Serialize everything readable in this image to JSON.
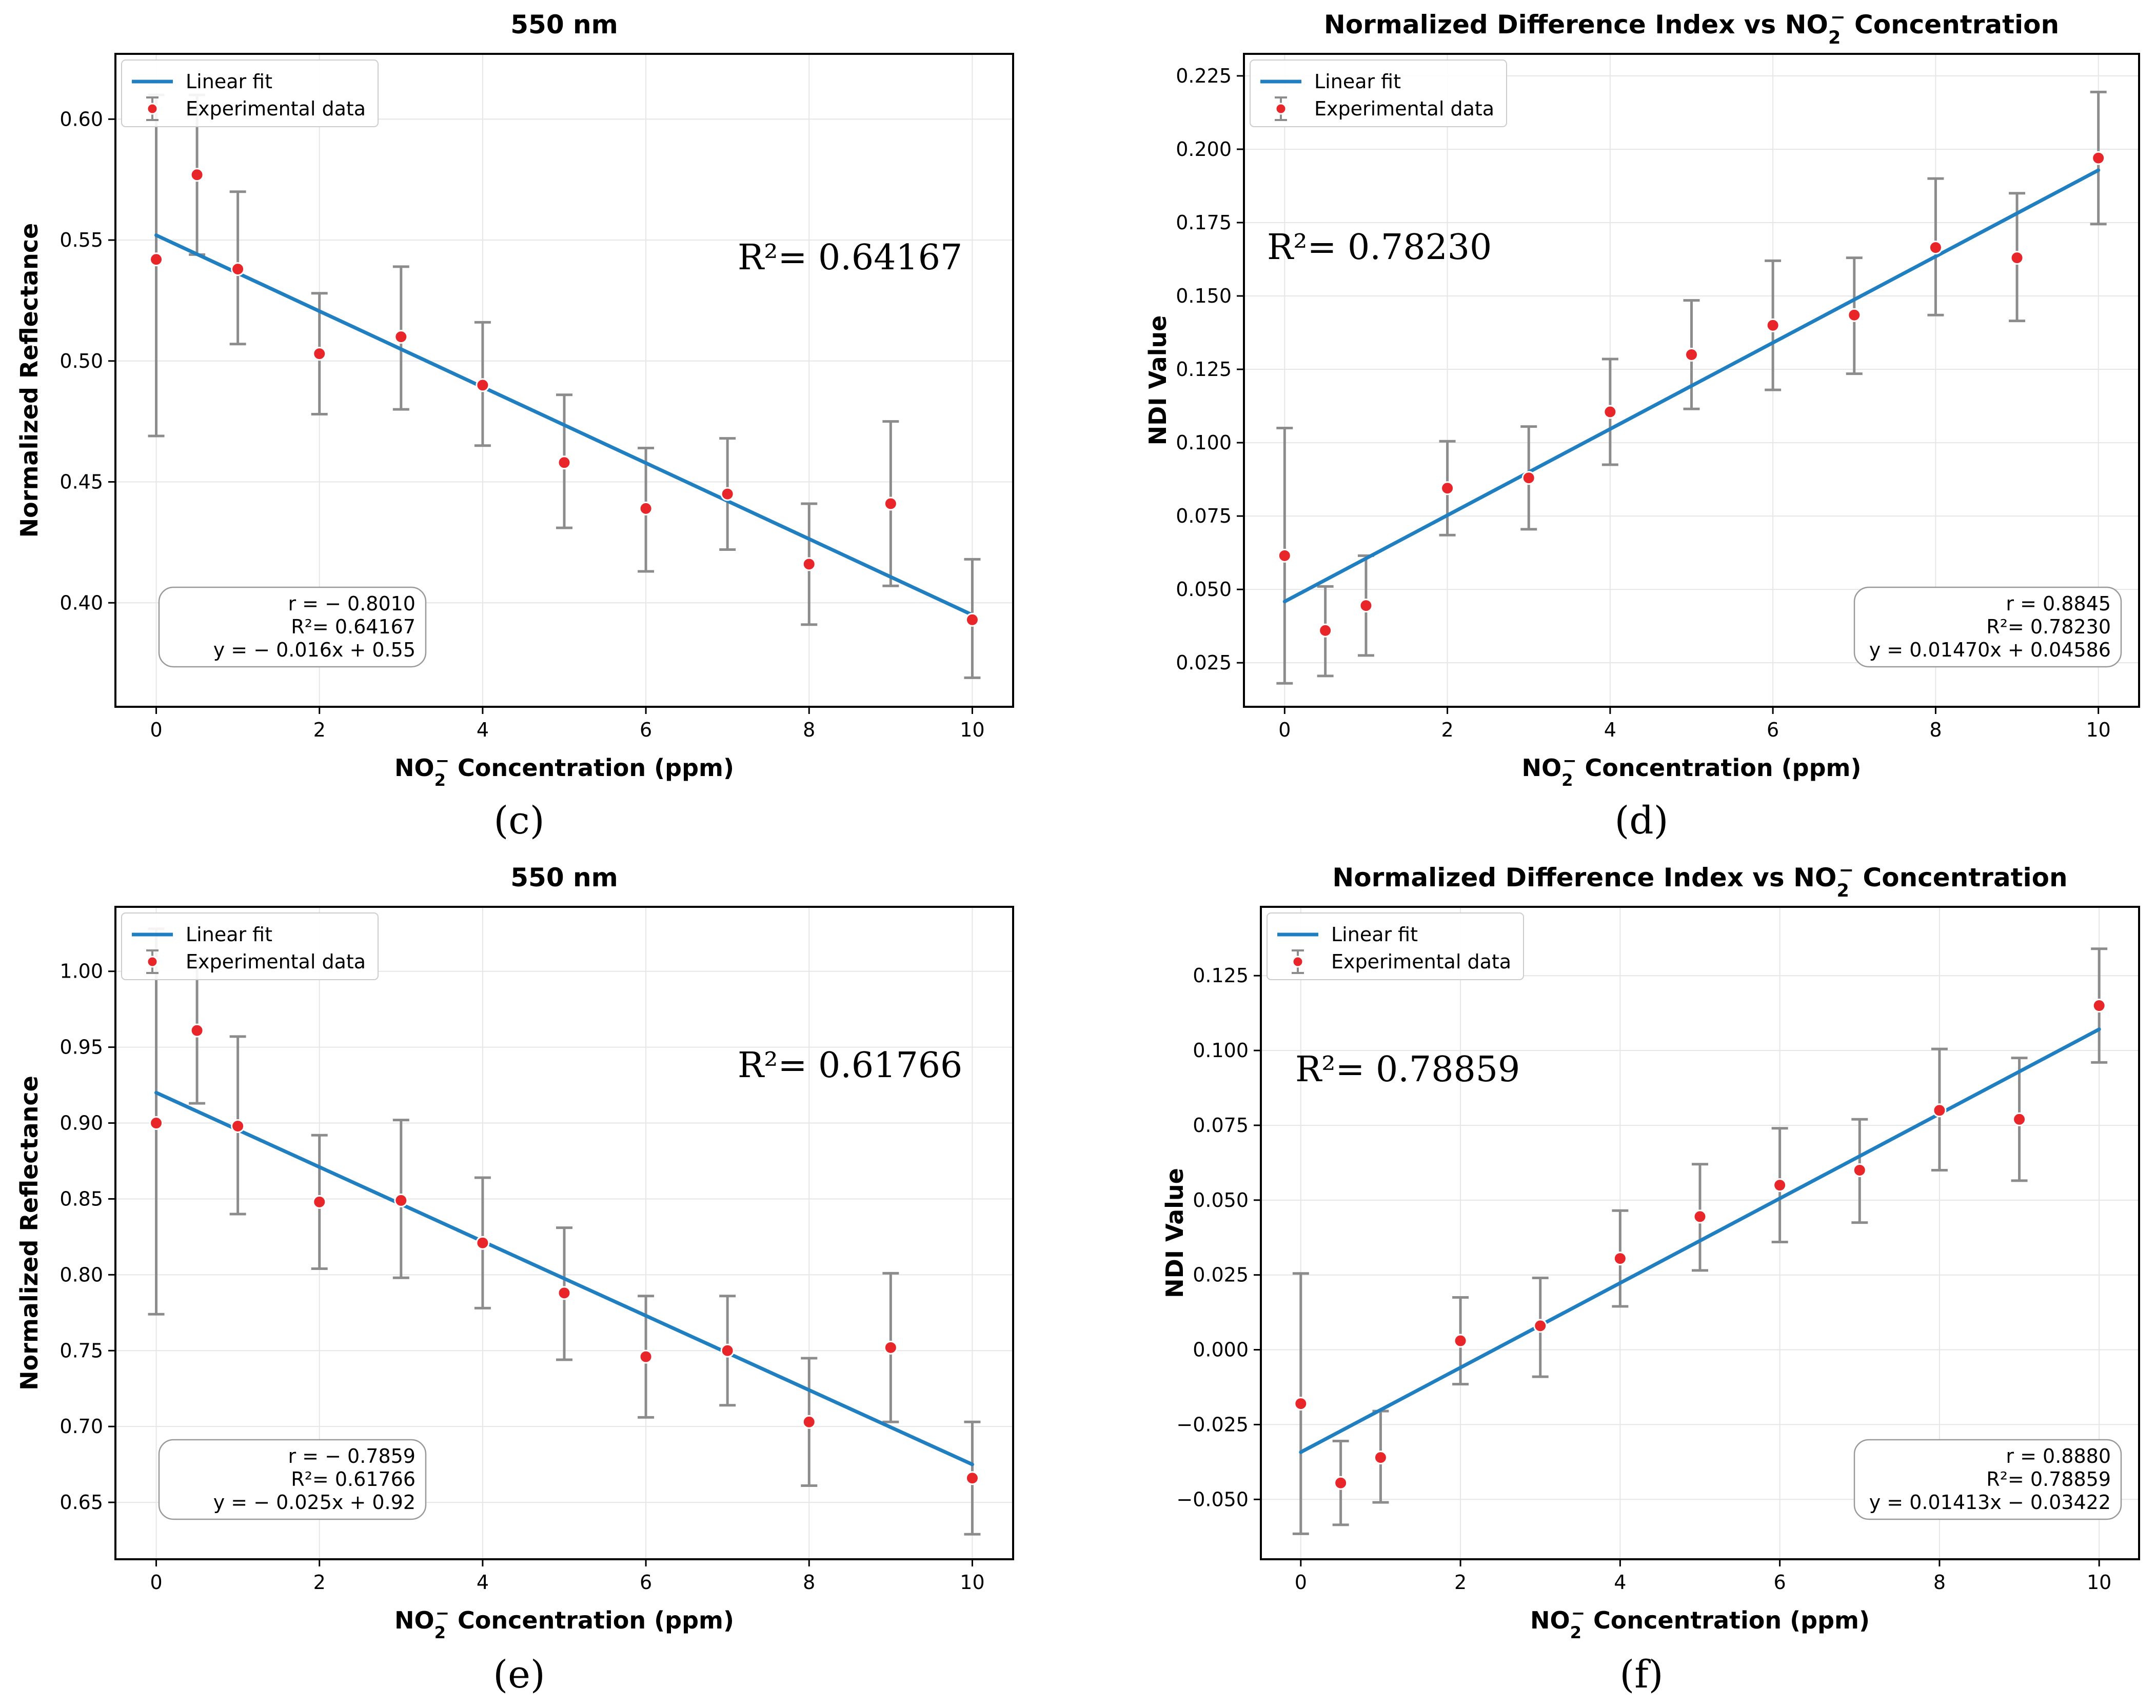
{
  "chart_data": [
    {
      "type": "scatter",
      "panel_label": "(c)",
      "title": "550 nm",
      "xlabel": "NO",
      "xlabel_suffix": " Concentration (ppm)",
      "ylabel": "Normalized Reflectance",
      "xlim": [
        -0.5,
        10.5
      ],
      "ylim": [
        0.357,
        0.627
      ],
      "xticks": [
        0,
        2,
        4,
        6,
        8,
        10
      ],
      "xtick_labels": [
        "0",
        "2",
        "4",
        "6",
        "8",
        "10"
      ],
      "yticks": [
        0.4,
        0.45,
        0.5,
        0.55,
        0.6
      ],
      "ytick_labels": [
        "0.40",
        "0.45",
        "0.50",
        "0.55",
        "0.60"
      ],
      "legend": [
        "Linear fit",
        "Experimental data"
      ],
      "legend_position": "top-left",
      "x": [
        0,
        0.5,
        1,
        2,
        3,
        4,
        5,
        6,
        7,
        8,
        9,
        10
      ],
      "y": [
        0.542,
        0.577,
        0.538,
        0.503,
        0.51,
        0.49,
        0.458,
        0.439,
        0.445,
        0.416,
        0.441,
        0.393
      ],
      "yerr_low": [
        0.469,
        0.544,
        0.507,
        0.478,
        0.48,
        0.465,
        0.431,
        0.413,
        0.422,
        0.391,
        0.407,
        0.369
      ],
      "yerr_high": [
        0.61,
        0.61,
        0.57,
        0.528,
        0.539,
        0.516,
        0.486,
        0.464,
        0.468,
        0.441,
        0.475,
        0.418
      ],
      "fit": {
        "slope": -0.0157,
        "intercept": 0.552
      },
      "r2_annotation": "0.64167",
      "stats": [
        "r = − 0.8010",
        "R²= 0.64167",
        "y = − 0.016x + 0.55"
      ],
      "stats_position": "bottom-left",
      "r2_position": "upper-right"
    },
    {
      "type": "scatter",
      "panel_label": "(d)",
      "title": "Normalized Difference Index vs NO",
      "title_suffix": " Concentration",
      "xlabel": "NO",
      "xlabel_suffix": " Concentration (ppm)",
      "ylabel": "NDI Value",
      "xlim": [
        -0.5,
        10.5
      ],
      "ylim": [
        0.01,
        0.2325
      ],
      "xticks": [
        0,
        2,
        4,
        6,
        8,
        10
      ],
      "xtick_labels": [
        "0",
        "2",
        "4",
        "6",
        "8",
        "10"
      ],
      "yticks": [
        0.025,
        0.05,
        0.075,
        0.1,
        0.125,
        0.15,
        0.175,
        0.2,
        0.225
      ],
      "ytick_labels": [
        "0.025",
        "0.050",
        "0.075",
        "0.100",
        "0.125",
        "0.150",
        "0.175",
        "0.200",
        "0.225"
      ],
      "legend": [
        "Linear fit",
        "Experimental data"
      ],
      "legend_position": "top-left",
      "x": [
        0,
        0.5,
        1,
        2,
        3,
        4,
        5,
        6,
        7,
        8,
        9,
        10
      ],
      "y": [
        0.0615,
        0.036,
        0.0445,
        0.0845,
        0.088,
        0.1105,
        0.13,
        0.14,
        0.1435,
        0.1665,
        0.163,
        0.197
      ],
      "yerr_low": [
        0.018,
        0.0205,
        0.0275,
        0.0685,
        0.0705,
        0.0925,
        0.1115,
        0.118,
        0.1235,
        0.1435,
        0.1415,
        0.1745
      ],
      "yerr_high": [
        0.105,
        0.051,
        0.0615,
        0.1005,
        0.1055,
        0.1285,
        0.1485,
        0.162,
        0.163,
        0.19,
        0.185,
        0.2195
      ],
      "fit": {
        "slope": 0.0147,
        "intercept": 0.04586
      },
      "r2_annotation": "0.78230",
      "stats": [
        "r = 0.8845",
        "R²= 0.78230",
        "y = 0.01470x + 0.04586"
      ],
      "stats_position": "bottom-right",
      "r2_position": "upper-left"
    },
    {
      "type": "scatter",
      "panel_label": "(e)",
      "title": "550 nm",
      "xlabel": "NO",
      "xlabel_suffix": " Concentration (ppm)",
      "ylabel": "Normalized Reflectance",
      "xlim": [
        -0.5,
        10.5
      ],
      "ylim": [
        0.6125,
        1.0425
      ],
      "xticks": [
        0,
        2,
        4,
        6,
        8,
        10
      ],
      "xtick_labels": [
        "0",
        "2",
        "4",
        "6",
        "8",
        "10"
      ],
      "yticks": [
        0.65,
        0.7,
        0.75,
        0.8,
        0.85,
        0.9,
        0.95,
        1.0
      ],
      "ytick_labels": [
        "0.65",
        "0.70",
        "0.75",
        "0.80",
        "0.85",
        "0.90",
        "0.95",
        "1.00"
      ],
      "legend": [
        "Linear fit",
        "Experimental data"
      ],
      "legend_position": "top-left",
      "x": [
        0,
        0.5,
        1,
        2,
        3,
        4,
        5,
        6,
        7,
        8,
        9,
        10
      ],
      "y": [
        0.9,
        0.961,
        0.898,
        0.848,
        0.849,
        0.821,
        0.788,
        0.746,
        0.75,
        0.703,
        0.752,
        0.666
      ],
      "yerr_low": [
        0.774,
        0.913,
        0.84,
        0.804,
        0.798,
        0.778,
        0.744,
        0.706,
        0.714,
        0.661,
        0.703,
        0.629
      ],
      "yerr_high": [
        1.028,
        1.008,
        0.957,
        0.892,
        0.902,
        0.864,
        0.831,
        0.786,
        0.786,
        0.745,
        0.801,
        0.703
      ],
      "fit": {
        "slope": -0.0245,
        "intercept": 0.92
      },
      "r2_annotation": "0.61766",
      "stats": [
        "r = − 0.7859",
        "R²= 0.61766",
        "y = − 0.025x + 0.92"
      ],
      "stats_position": "bottom-left",
      "r2_position": "upper-right"
    },
    {
      "type": "scatter",
      "panel_label": "(f)",
      "title": "Normalized Difference Index vs NO",
      "title_suffix": " Concentration",
      "xlabel": "NO",
      "xlabel_suffix": " Concentration (ppm)",
      "ylabel": "NDI Value",
      "xlim": [
        -0.5,
        10.5
      ],
      "ylim": [
        -0.07,
        0.148
      ],
      "xticks": [
        0,
        2,
        4,
        6,
        8,
        10
      ],
      "xtick_labels": [
        "0",
        "2",
        "4",
        "6",
        "8",
        "10"
      ],
      "yticks": [
        -0.05,
        -0.025,
        0.0,
        0.025,
        0.05,
        0.075,
        0.1,
        0.125
      ],
      "ytick_labels": [
        "−0.050",
        "−0.025",
        "0.000",
        "0.025",
        "0.050",
        "0.075",
        "0.100",
        "0.125"
      ],
      "legend": [
        "Linear fit",
        "Experimental data"
      ],
      "legend_position": "top-left",
      "x": [
        0,
        0.5,
        1,
        2,
        3,
        4,
        5,
        6,
        7,
        8,
        9,
        10
      ],
      "y": [
        -0.018,
        -0.0445,
        -0.036,
        0.003,
        0.008,
        0.0305,
        0.0445,
        0.055,
        0.06,
        0.08,
        0.077,
        0.115
      ],
      "yerr_low": [
        -0.0615,
        -0.0585,
        -0.051,
        -0.0115,
        -0.009,
        0.0145,
        0.0265,
        0.036,
        0.0425,
        0.06,
        0.0565,
        0.096
      ],
      "yerr_high": [
        0.0255,
        -0.0305,
        -0.0205,
        0.0175,
        0.024,
        0.0465,
        0.062,
        0.074,
        0.077,
        0.1005,
        0.0975,
        0.134
      ],
      "fit": {
        "slope": 0.01413,
        "intercept": -0.03422
      },
      "r2_annotation": "0.78859",
      "stats": [
        "r = 0.8880",
        "R²= 0.78859",
        "y = 0.01413x − 0.03422"
      ],
      "stats_position": "bottom-right",
      "r2_position": "upper-left"
    }
  ],
  "common": {
    "r2_prefix": "R²= ",
    "no2_sub": "2",
    "no2_sup": "−",
    "colors": {
      "fit_line": "#1f7fc1",
      "marker": "#e8262a",
      "errorbar": "#8c8c8c",
      "grid": "#e6e6e6",
      "frame": "#000000"
    }
  }
}
